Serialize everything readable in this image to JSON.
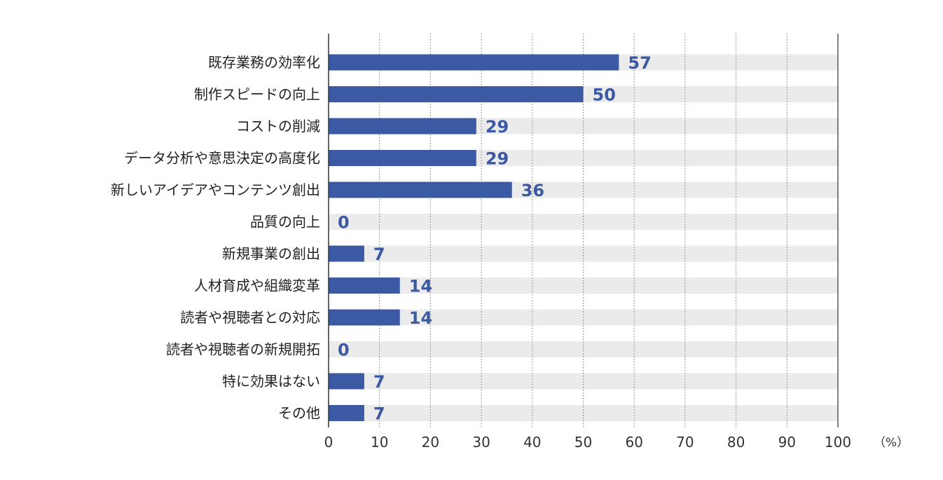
{
  "chart_data": {
    "type": "bar",
    "orientation": "horizontal",
    "categories": [
      "既存業務の効率化",
      "制作スピードの向上",
      "コストの削減",
      "データ分析や意思決定の高度化",
      "新しいアイデアやコンテンツ創出",
      "品質の向上",
      "新規事業の創出",
      "人材育成や組織変革",
      "読者や視聴者との対応",
      "読者や視聴者の新規開拓",
      "特に効果はない",
      "その他"
    ],
    "values": [
      57,
      50,
      29,
      29,
      36,
      0,
      7,
      14,
      14,
      0,
      7,
      7
    ],
    "xlim": [
      0,
      100
    ],
    "xticks": [
      "0",
      "10",
      "20",
      "30",
      "40",
      "50",
      "60",
      "70",
      "80",
      "90",
      "100"
    ],
    "unit": "（%）",
    "grid": "vertical-dotted",
    "colors": {
      "bar": "#3b5aa3",
      "track": "#ebebeb",
      "grid": "#777777",
      "axis": "#333333",
      "value_text": "#3b5aa3"
    }
  }
}
